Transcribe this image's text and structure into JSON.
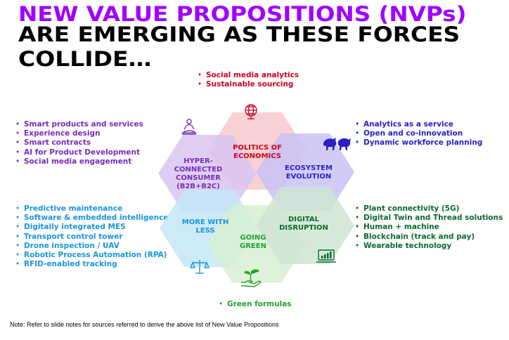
{
  "title": {
    "line1": "NEW VALUE PROPOSITIONS (NVPs)",
    "line2": "ARE EMERGING AS THESE FORCES",
    "line3": "COLLIDE…"
  },
  "segments": {
    "politics": {
      "label_line1": "POLITICS OF",
      "label_line2": "ECONOMICS",
      "icon": "globe-icon",
      "items": [
        "Social media analytics",
        "Sustainable sourcing"
      ]
    },
    "hyper": {
      "label_line1": "HYPER-",
      "label_line2": "CONNECTED",
      "label_line3": "CONSUMER",
      "label_line4": "(B2B+B2C)",
      "icon": "meditating-person-icon",
      "items": [
        "Smart products and services",
        "Experience design",
        "Smart contracts",
        "AI for Product Development",
        "Social media engagement"
      ]
    },
    "ecosystem": {
      "label_line1": "ECOSYSTEM",
      "label_line2": "EVOLUTION",
      "icon": "bull-bear-icon",
      "items": [
        "Analytics as a service",
        "Open and co-innovation",
        "Dynamic workforce planning"
      ]
    },
    "more_with_less": {
      "label_line1": "MORE WITH",
      "label_line2": "LESS",
      "icon": "scales-icon",
      "items": [
        "Predictive maintenance",
        "Software & embedded intelligence",
        "Digitally integrated MES",
        "Transport control tower",
        "Drone inspection / UAV",
        "Robotic Process Automation (RPA)",
        "RFID-enabled tracking"
      ]
    },
    "digital": {
      "label_line1": "DIGITAL",
      "label_line2": "DISRUPTION",
      "icon": "laptop-chart-icon",
      "items": [
        "Plant connectivity (5G)",
        "Digital Twin and Thread solutions",
        "Human + machine",
        "Blockchain (track and pay)",
        "Wearable technology"
      ]
    },
    "going_green": {
      "label_line1": "GOING",
      "label_line2": "GREEN",
      "icon": "plant-hand-icon",
      "items": [
        "Green formulas"
      ]
    }
  },
  "colors": {
    "politics": "#f7c9cc",
    "hyper": "#d9c5f0",
    "ecosystem": "#c9c2f5",
    "more_with_less": "#c4e6f6",
    "digital": "#cfe5d2",
    "going_green": "#d7f0d2"
  },
  "note": "Note: Refer to slide notes for sources referred to derive the above list of New Value Propositions"
}
